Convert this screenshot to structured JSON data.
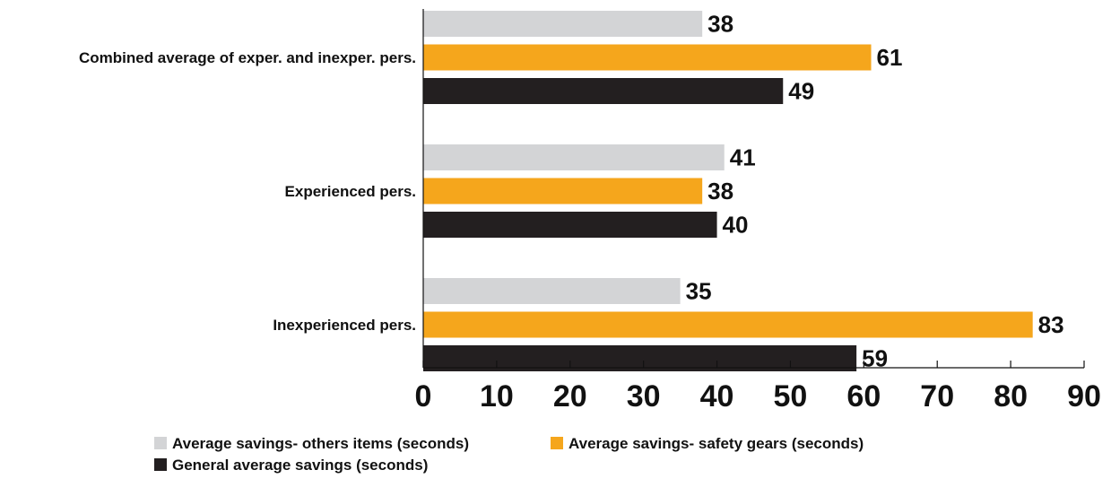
{
  "chart_data": {
    "type": "bar",
    "orientation": "horizontal",
    "categories": [
      "Combined average of exper. and inexper. pers.",
      "Experienced pers.",
      "Inexperienced pers."
    ],
    "series": [
      {
        "name": "Average savings- others items (seconds)",
        "color": "#d3d4d6",
        "values": [
          38,
          41,
          35
        ]
      },
      {
        "name": "Average savings- safety gears (seconds)",
        "color": "#f5a61c",
        "values": [
          61,
          38,
          83
        ]
      },
      {
        "name": "General average savings (seconds)",
        "color": "#231f20",
        "values": [
          49,
          40,
          59
        ]
      }
    ],
    "xlim": [
      0,
      90
    ],
    "x_ticks": [
      "0",
      "10",
      "20",
      "30",
      "40",
      "50",
      "60",
      "70",
      "80",
      "90"
    ],
    "grid": false,
    "legend_position": "bottom"
  }
}
